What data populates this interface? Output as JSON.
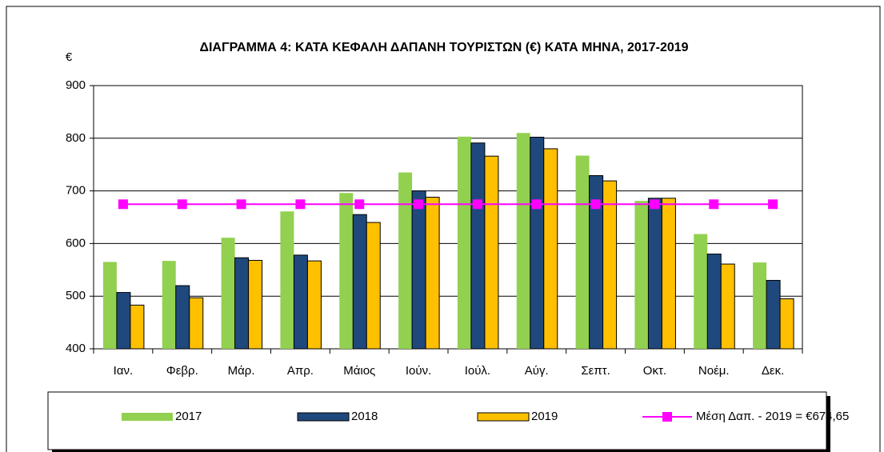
{
  "chart_data": {
    "type": "bar",
    "title": "ΔΙΑΓΡΑΜΜΑ 4:  ΚΑΤΑ ΚΕΦΑΛΗ ΔΑΠΑΝΗ ΤΟΥΡΙΣΤΩΝ (€) ΚΑΤΑ ΜΗΝΑ,  2017-2019",
    "y_label": "€",
    "categories": [
      "Ιαν.",
      "Φεβρ.",
      "Μάρ.",
      "Απρ.",
      "Μάιος",
      "Ιούν.",
      "Ιούλ.",
      "Αύγ.",
      "Σεπτ.",
      "Οκτ.",
      "Νοέμ.",
      "Δεκ."
    ],
    "series": [
      {
        "name": "2017",
        "color": "#92d050",
        "values": [
          565,
          567,
          611,
          661,
          696,
          735,
          803,
          810,
          767,
          681,
          618,
          564
        ]
      },
      {
        "name": "2018",
        "color": "#1f497d",
        "values": [
          507,
          520,
          573,
          578,
          655,
          700,
          791,
          802,
          729,
          686,
          580,
          530
        ]
      },
      {
        "name": "2019",
        "color": "#ffc000",
        "values": [
          483,
          497,
          568,
          567,
          640,
          688,
          766,
          780,
          719,
          686,
          561,
          495
        ]
      },
      {
        "name": "Μέση Δαπ. - 2019 = €674,65",
        "color": "#ff00ff",
        "type": "line",
        "values": [
          674.65,
          674.65,
          674.65,
          674.65,
          674.65,
          674.65,
          674.65,
          674.65,
          674.65,
          674.65,
          674.65,
          674.65
        ]
      }
    ],
    "ylim": [
      400,
      900
    ],
    "yticks": [
      400,
      500,
      600,
      700,
      800,
      900
    ],
    "grid": true,
    "legend": "bottom"
  }
}
